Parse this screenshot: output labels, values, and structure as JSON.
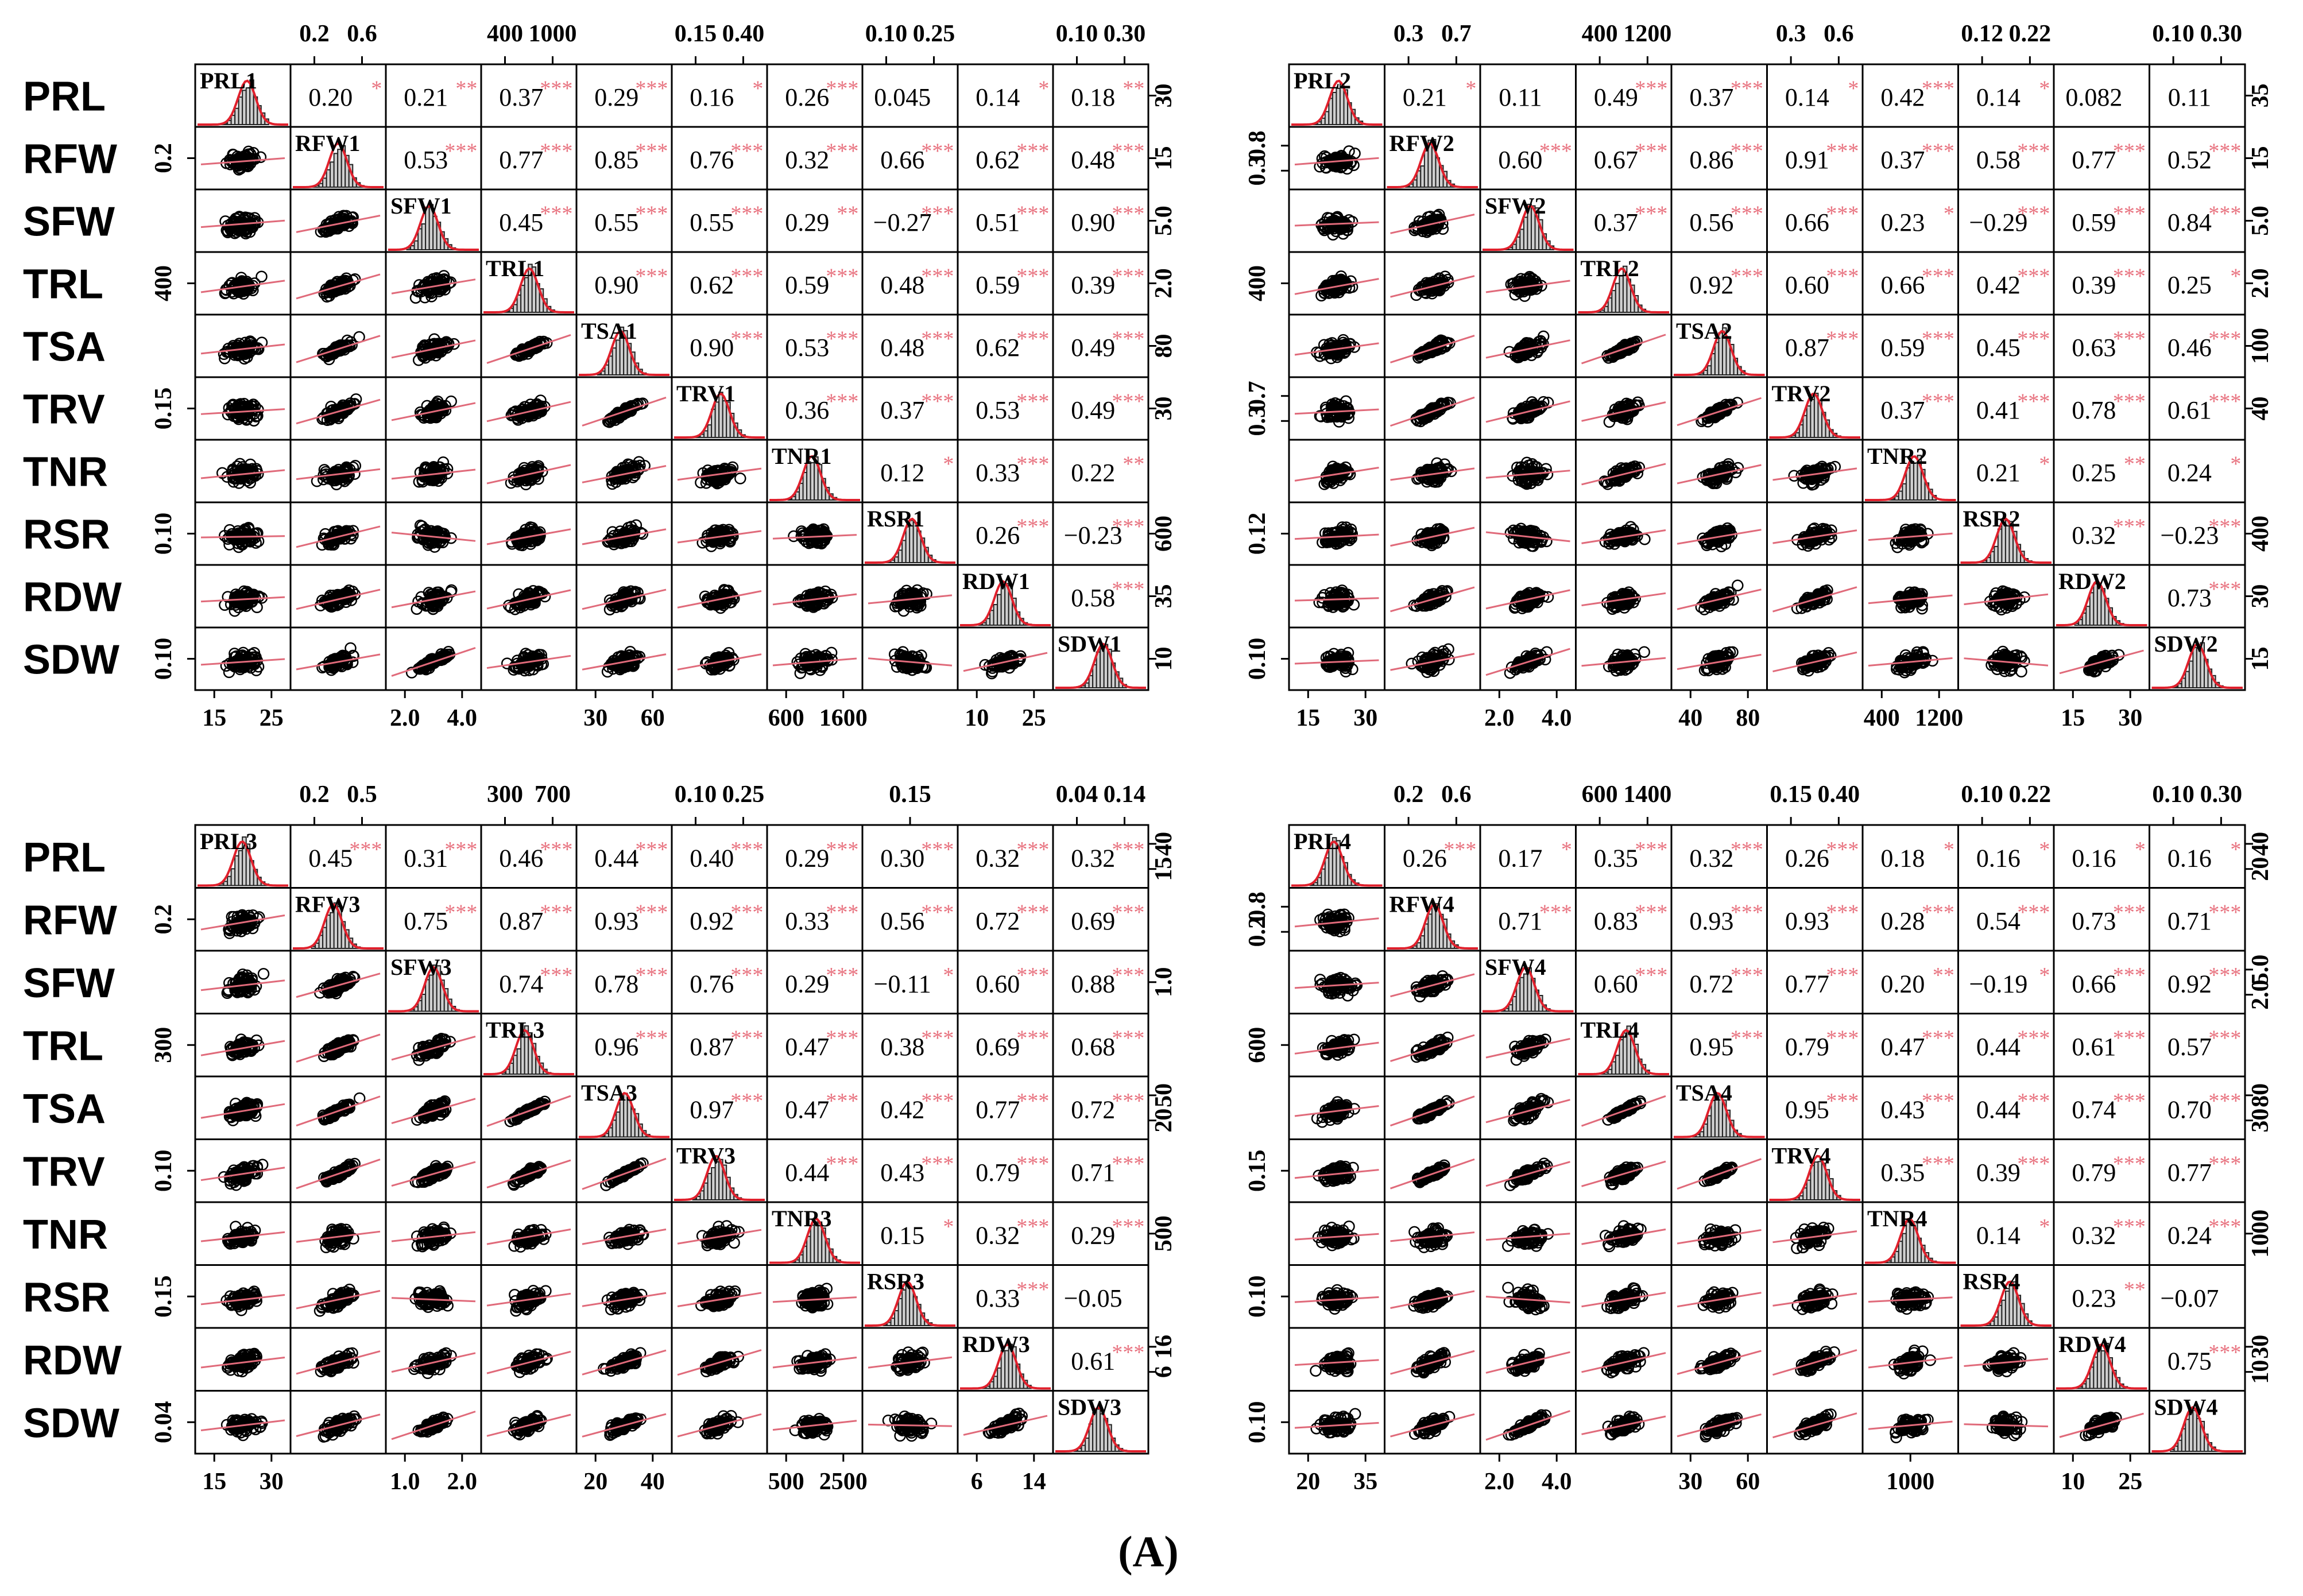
{
  "figure_label": "(A)",
  "colors": {
    "frame": "#000000",
    "points": "#000000",
    "smooth_line": "#e06a7a",
    "significance_stars": "#e8727f",
    "histogram_fill": "#cfcfcf",
    "histogram_outline": "#222222",
    "density_line": "#e0202c",
    "coefficient_text": "#000000"
  },
  "chart_data": [
    {
      "type": "scatter-matrix",
      "variables": [
        "PRL",
        "RFW",
        "SFW",
        "TRL",
        "TSA",
        "TRV",
        "TNR",
        "RSR",
        "RDW",
        "SDW"
      ],
      "diagonal_labels": [
        "PRL1",
        "RFW1",
        "SFW1",
        "TRL1",
        "TSA1",
        "TRV1",
        "TNR1",
        "RSR1",
        "RDW1",
        "SDW1"
      ],
      "top_axis": [
        [],
        [
          "0.2",
          "0.6"
        ],
        [],
        [
          "400",
          "1000"
        ],
        [],
        [
          "0.15",
          "0.40"
        ],
        [],
        [
          "0.10",
          "0.25"
        ],
        [],
        [
          "0.10",
          "0.30"
        ]
      ],
      "right_axis": [
        [
          "30"
        ],
        [
          "15"
        ],
        [
          "5.0"
        ],
        [
          "2.0"
        ],
        [
          "80"
        ],
        [
          "30"
        ],
        [],
        [
          "600"
        ],
        [
          "35"
        ],
        [
          "10"
        ]
      ],
      "left_axis": [
        [],
        [
          "0.2"
        ],
        [],
        [
          "400"
        ],
        [],
        [
          "0.15"
        ],
        [],
        [
          "0.10"
        ],
        [],
        [
          "0.10"
        ]
      ],
      "bottom_axis": [
        [
          "15",
          "25"
        ],
        [],
        [
          "2.0",
          "4.0"
        ],
        [],
        [
          "30",
          "60"
        ],
        [],
        [
          "600",
          "1600"
        ],
        [],
        [
          "10",
          "25"
        ],
        []
      ],
      "correlations": [
        [
          "0.20",
          "0.21",
          "0.37",
          "0.29",
          "0.16",
          "0.26",
          "0.045",
          "0.14",
          "0.18"
        ],
        [
          "0.53",
          "0.77",
          "0.85",
          "0.76",
          "0.32",
          "0.66",
          "0.62",
          "0.48"
        ],
        [
          "0.45",
          "0.55",
          "0.55",
          "0.29",
          "−0.27",
          "0.51",
          "0.90"
        ],
        [
          "0.90",
          "0.62",
          "0.59",
          "0.48",
          "0.59",
          "0.39"
        ],
        [
          "0.90",
          "0.53",
          "0.48",
          "0.62",
          "0.49"
        ],
        [
          "0.36",
          "0.37",
          "0.53",
          "0.49"
        ],
        [
          "0.12",
          "0.33",
          "0.22"
        ],
        [
          "0.26",
          "−0.23"
        ],
        [
          "0.58"
        ]
      ],
      "significance": [
        [
          "*",
          "**",
          "***",
          "***",
          "*",
          "***",
          "",
          "*",
          "**"
        ],
        [
          "***",
          "***",
          "***",
          "***",
          "***",
          "***",
          "***",
          "***"
        ],
        [
          "***",
          "***",
          "***",
          "**",
          "***",
          "***",
          "***"
        ],
        [
          "***",
          "***",
          "***",
          "***",
          "***",
          "***"
        ],
        [
          "***",
          "***",
          "***",
          "***",
          "***"
        ],
        [
          "***",
          "***",
          "***",
          "***"
        ],
        [
          "*",
          "***",
          "**"
        ],
        [
          "***",
          "***"
        ],
        [
          "***"
        ]
      ]
    },
    {
      "type": "scatter-matrix",
      "variables": [
        "",
        "",
        "",
        "",
        "",
        "",
        "",
        "",
        "",
        ""
      ],
      "diagonal_labels": [
        "PRL2",
        "RFW2",
        "SFW2",
        "TRL2",
        "TSA2",
        "TRV2",
        "TNR2",
        "RSR2",
        "RDW2",
        "SDW2"
      ],
      "top_axis": [
        [],
        [
          "0.3",
          "0.7"
        ],
        [],
        [
          "400",
          "1200"
        ],
        [],
        [
          "0.3",
          "0.6"
        ],
        [],
        [
          "0.12",
          "0.22"
        ],
        [],
        [
          "0.10",
          "0.30"
        ]
      ],
      "right_axis": [
        [
          "35"
        ],
        [
          "15"
        ],
        [
          "5.0"
        ],
        [
          "2.0"
        ],
        [
          "100"
        ],
        [
          "40"
        ],
        [],
        [
          "400"
        ],
        [
          "30"
        ],
        [
          "15"
        ]
      ],
      "left_axis": [
        [],
        [
          "0.8",
          "0.3"
        ],
        [],
        [
          "400"
        ],
        [],
        [
          "0.7",
          "0.3"
        ],
        [],
        [
          "0.12"
        ],
        [],
        [
          "0.10"
        ]
      ],
      "bottom_axis": [
        [
          "15",
          "30"
        ],
        [],
        [
          "2.0",
          "4.0"
        ],
        [],
        [
          "40",
          "80"
        ],
        [],
        [
          "400",
          "1200"
        ],
        [],
        [
          "15",
          "30"
        ],
        []
      ],
      "correlations": [
        [
          "0.21",
          "0.11",
          "0.49",
          "0.37",
          "0.14",
          "0.42",
          "0.14",
          "0.082",
          "0.11"
        ],
        [
          "0.60",
          "0.67",
          "0.86",
          "0.91",
          "0.37",
          "0.58",
          "0.77",
          "0.52"
        ],
        [
          "0.37",
          "0.56",
          "0.66",
          "0.23",
          "−0.29",
          "0.59",
          "0.84"
        ],
        [
          "0.92",
          "0.60",
          "0.66",
          "0.42",
          "0.39",
          "0.25"
        ],
        [
          "0.87",
          "0.59",
          "0.45",
          "0.63",
          "0.46"
        ],
        [
          "0.37",
          "0.41",
          "0.78",
          "0.61"
        ],
        [
          "0.21",
          "0.25",
          "0.24"
        ],
        [
          "0.32",
          "−0.23"
        ],
        [
          "0.73"
        ]
      ],
      "significance": [
        [
          "*",
          "",
          "***",
          "***",
          "*",
          "***",
          "*",
          "",
          ""
        ],
        [
          "***",
          "***",
          "***",
          "***",
          "***",
          "***",
          "***",
          "***"
        ],
        [
          "***",
          "***",
          "***",
          "*",
          "***",
          "***",
          "***"
        ],
        [
          "***",
          "***",
          "***",
          "***",
          "***",
          "*"
        ],
        [
          "***",
          "***",
          "***",
          "***",
          "***"
        ],
        [
          "***",
          "***",
          "***",
          "***"
        ],
        [
          "*",
          "**",
          "*"
        ],
        [
          "***",
          "***"
        ],
        [
          "***"
        ]
      ]
    },
    {
      "type": "scatter-matrix",
      "variables": [
        "PRL",
        "RFW",
        "SFW",
        "TRL",
        "TSA",
        "TRV",
        "TNR",
        "RSR",
        "RDW",
        "SDW"
      ],
      "diagonal_labels": [
        "PRL3",
        "RFW3",
        "SFW3",
        "TRL3",
        "TSA3",
        "TRV3",
        "TNR3",
        "RSR3",
        "RDW3",
        "SDW3"
      ],
      "top_axis": [
        [],
        [
          "0.2",
          "0.5"
        ],
        [],
        [
          "300",
          "700"
        ],
        [],
        [
          "0.10",
          "0.25"
        ],
        [],
        [
          "0.15"
        ],
        [],
        [
          "0.04",
          "0.14"
        ]
      ],
      "right_axis": [
        [
          "40",
          "15"
        ],
        [],
        [
          "1.0"
        ],
        [],
        [
          "50",
          "20"
        ],
        [],
        [
          "500"
        ],
        [],
        [
          "16",
          "6"
        ],
        []
      ],
      "left_axis": [
        [],
        [
          "0.2"
        ],
        [],
        [
          "300"
        ],
        [],
        [
          "0.10"
        ],
        [],
        [
          "0.15"
        ],
        [],
        [
          "0.04"
        ]
      ],
      "bottom_axis": [
        [
          "15",
          "30"
        ],
        [],
        [
          "1.0",
          "2.0"
        ],
        [],
        [
          "20",
          "40"
        ],
        [],
        [
          "500",
          "2500"
        ],
        [],
        [
          "6",
          "14"
        ],
        []
      ],
      "correlations": [
        [
          "0.45",
          "0.31",
          "0.46",
          "0.44",
          "0.40",
          "0.29",
          "0.30",
          "0.32",
          "0.32"
        ],
        [
          "0.75",
          "0.87",
          "0.93",
          "0.92",
          "0.33",
          "0.56",
          "0.72",
          "0.69"
        ],
        [
          "0.74",
          "0.78",
          "0.76",
          "0.29",
          "−0.11",
          "0.60",
          "0.88"
        ],
        [
          "0.96",
          "0.87",
          "0.47",
          "0.38",
          "0.69",
          "0.68"
        ],
        [
          "0.97",
          "0.47",
          "0.42",
          "0.77",
          "0.72"
        ],
        [
          "0.44",
          "0.43",
          "0.79",
          "0.71"
        ],
        [
          "0.15",
          "0.32",
          "0.29"
        ],
        [
          "0.33",
          "−0.05"
        ],
        [
          "0.61"
        ]
      ],
      "significance": [
        [
          "***",
          "***",
          "***",
          "***",
          "***",
          "***",
          "***",
          "***",
          "***"
        ],
        [
          "***",
          "***",
          "***",
          "***",
          "***",
          "***",
          "***",
          "***"
        ],
        [
          "***",
          "***",
          "***",
          "***",
          "*",
          "***",
          "***"
        ],
        [
          "***",
          "***",
          "***",
          "***",
          "***",
          "***"
        ],
        [
          "***",
          "***",
          "***",
          "***",
          "***"
        ],
        [
          "***",
          "***",
          "***",
          "***"
        ],
        [
          "*",
          "***",
          "***"
        ],
        [
          "***",
          ""
        ],
        [
          "***"
        ]
      ]
    },
    {
      "type": "scatter-matrix",
      "variables": [
        "",
        "",
        "",
        "",
        "",
        "",
        "",
        "",
        "",
        ""
      ],
      "diagonal_labels": [
        "PRL4",
        "RFW4",
        "SFW4",
        "TRL4",
        "TSA4",
        "TRV4",
        "TNR4",
        "RSR4",
        "RDW4",
        "SDW4"
      ],
      "top_axis": [
        [],
        [
          "0.2",
          "0.6"
        ],
        [],
        [
          "600",
          "1400"
        ],
        [],
        [
          "0.15",
          "0.40"
        ],
        [],
        [
          "0.10",
          "0.22"
        ],
        [],
        [
          "0.10",
          "0.30"
        ]
      ],
      "right_axis": [
        [
          "40",
          "20"
        ],
        [],
        [
          "5.0",
          "2.0"
        ],
        [],
        [
          "80",
          "30"
        ],
        [],
        [
          "1000"
        ],
        [],
        [
          "30",
          "10"
        ],
        []
      ],
      "left_axis": [
        [],
        [
          "0.8",
          "0.2"
        ],
        [],
        [
          "600"
        ],
        [],
        [
          "0.15"
        ],
        [],
        [
          "0.10"
        ],
        [],
        [
          "0.10"
        ]
      ],
      "bottom_axis": [
        [
          "20",
          "35"
        ],
        [],
        [
          "2.0",
          "4.0"
        ],
        [],
        [
          "30",
          "60"
        ],
        [],
        [
          "1000"
        ],
        [],
        [
          "10",
          "25"
        ],
        []
      ],
      "correlations": [
        [
          "0.26",
          "0.17",
          "0.35",
          "0.32",
          "0.26",
          "0.18",
          "0.16",
          "0.16",
          "0.16"
        ],
        [
          "0.71",
          "0.83",
          "0.93",
          "0.93",
          "0.28",
          "0.54",
          "0.73",
          "0.71"
        ],
        [
          "0.60",
          "0.72",
          "0.77",
          "0.20",
          "−0.19",
          "0.66",
          "0.92"
        ],
        [
          "0.95",
          "0.79",
          "0.47",
          "0.44",
          "0.61",
          "0.57"
        ],
        [
          "0.95",
          "0.43",
          "0.44",
          "0.74",
          "0.70"
        ],
        [
          "0.35",
          "0.39",
          "0.79",
          "0.77"
        ],
        [
          "0.14",
          "0.32",
          "0.24"
        ],
        [
          "0.23",
          "−0.07"
        ],
        [
          "0.75"
        ]
      ],
      "significance": [
        [
          "***",
          "*",
          "***",
          "***",
          "***",
          "*",
          "*",
          "*",
          "*"
        ],
        [
          "***",
          "***",
          "***",
          "***",
          "***",
          "***",
          "***",
          "***"
        ],
        [
          "***",
          "***",
          "***",
          "**",
          "*",
          "***",
          "***"
        ],
        [
          "***",
          "***",
          "***",
          "***",
          "***",
          "***"
        ],
        [
          "***",
          "***",
          "***",
          "***",
          "***"
        ],
        [
          "***",
          "***",
          "***",
          "***"
        ],
        [
          "*",
          "***",
          "***"
        ],
        [
          "**",
          ""
        ],
        [
          "***"
        ]
      ]
    }
  ]
}
